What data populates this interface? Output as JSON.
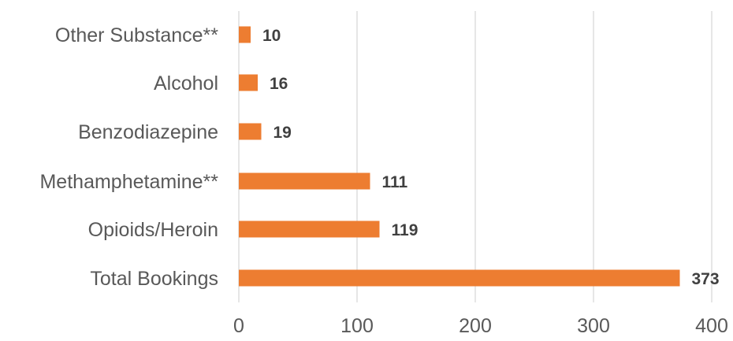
{
  "chart_data": {
    "type": "bar",
    "orientation": "horizontal",
    "categories": [
      "Other Substance**",
      "Alcohol",
      "Benzodiazepine",
      "Methamphetamine**",
      "Opioids/Heroin",
      "Total Bookings"
    ],
    "values": [
      10,
      16,
      19,
      111,
      119,
      373
    ],
    "data_labels": [
      "10",
      "16",
      "19",
      "111",
      "119",
      "373"
    ],
    "xlim": [
      0,
      400
    ],
    "x_ticks": [
      0,
      100,
      200,
      300,
      400
    ],
    "x_tick_labels": [
      "0",
      "100",
      "200",
      "300",
      "400"
    ],
    "grid": "vertical",
    "bar_color": "#ed7d31",
    "title": "",
    "xlabel": "",
    "ylabel": ""
  }
}
